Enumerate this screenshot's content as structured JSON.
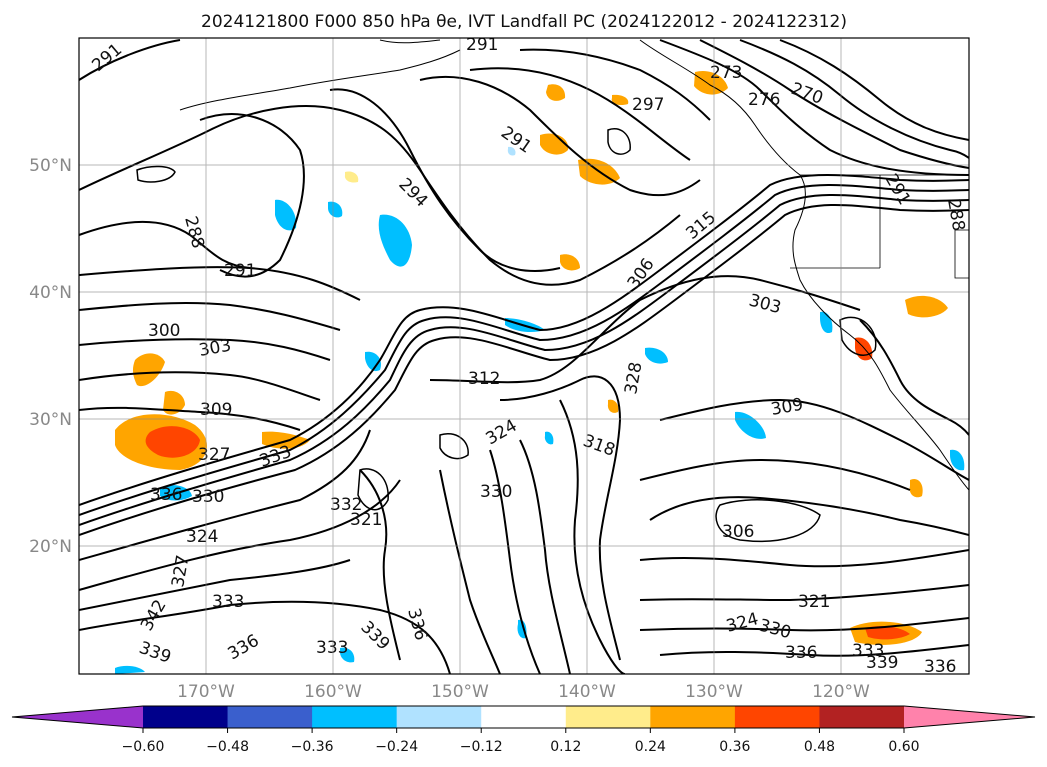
{
  "title": "2024121800 F000 850 hPa θe, IVT Landfall PC (2024122012 - 2024122312)",
  "lat_labels": [
    "50°N",
    "40°N",
    "30°N",
    "20°N"
  ],
  "lon_labels": [
    "170°W",
    "160°W",
    "150°W",
    "140°W",
    "130°W",
    "120°W"
  ],
  "contour_labels": [
    "291",
    "291",
    "273",
    "276",
    "270",
    "297",
    "291",
    "294",
    "288",
    "291",
    "306",
    "315",
    "303",
    "300",
    "303",
    "309",
    "312",
    "327",
    "328",
    "309",
    "324",
    "318",
    "333",
    "336",
    "330",
    "330",
    "332",
    "321",
    "324",
    "306",
    "321",
    "327",
    "324",
    "342",
    "339",
    "333",
    "336",
    "330",
    "336",
    "339",
    "333",
    "336",
    "333",
    "339",
    "336",
    "288",
    "291"
  ],
  "colorbar": {
    "ticks": [
      "−0.60",
      "−0.48",
      "−0.36",
      "−0.24",
      "−0.12",
      "0.12",
      "0.24",
      "0.36",
      "0.48",
      "0.60"
    ],
    "colors": [
      "#9932cc",
      "#00008b",
      "#3a5fcd",
      "#00bfff",
      "#b0e2ff",
      "#ffffff",
      "#ffec8b",
      "#ffa500",
      "#ff4500",
      "#b22222",
      "#ff82ab"
    ]
  }
}
